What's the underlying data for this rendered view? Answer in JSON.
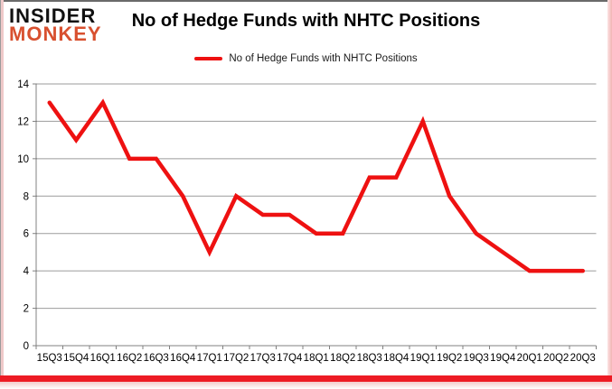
{
  "logo": {
    "line1": "INSIDER",
    "line2": "MONKEY"
  },
  "header": {
    "title": "No of Hedge Funds with NHTC Positions"
  },
  "legend": {
    "label": "No of Hedge Funds with NHTC Positions"
  },
  "colors": {
    "series_red": "#ee1111",
    "gridline_gray": "#9b9b9b",
    "axis_gray": "#808080",
    "logo_monkey_orange": "#d8502f",
    "bottom_bar_red": "#ed1b24",
    "tick_label_black": "#000000"
  },
  "chart_data": {
    "type": "line",
    "title": "No of Hedge Funds with NHTC Positions",
    "categories": [
      "15Q3",
      "15Q4",
      "16Q1",
      "16Q2",
      "16Q3",
      "16Q4",
      "17Q1",
      "17Q2",
      "17Q3",
      "17Q4",
      "18Q1",
      "18Q2",
      "18Q3",
      "18Q4",
      "19Q1",
      "19Q2",
      "19Q3",
      "19Q4",
      "20Q1",
      "20Q2",
      "20Q3"
    ],
    "series": [
      {
        "name": "No of Hedge Funds with NHTC Positions",
        "color": "#ee1111",
        "values": [
          13,
          11,
          13,
          10,
          10,
          8,
          5,
          8,
          7,
          7,
          6,
          6,
          9,
          9,
          12,
          8,
          6,
          5,
          4,
          4,
          4
        ]
      }
    ],
    "xlabel": "",
    "ylabel": "",
    "ylim": [
      0,
      14
    ],
    "yticks": [
      0,
      2,
      4,
      6,
      8,
      10,
      12,
      14
    ],
    "grid": true,
    "legend_position": "top-center"
  }
}
